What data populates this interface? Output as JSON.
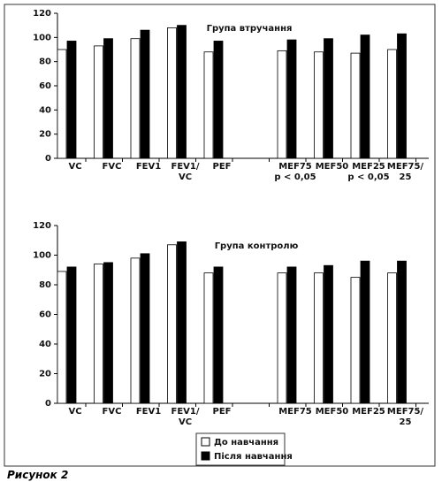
{
  "chart_data": [
    {
      "type": "bar",
      "title": "Група втручання",
      "categories": [
        "VC",
        "FVC",
        "FEV1",
        "FEV1/\nVC",
        "PEF",
        null,
        "MEF75\np < 0,05",
        "MEF50",
        "MEF25\np < 0,05",
        "MEF75/\n25"
      ],
      "series": [
        {
          "color": "#ffffff",
          "values": [
            90,
            93,
            99,
            108,
            88,
            null,
            89,
            88,
            87,
            90
          ]
        },
        {
          "color": "#000000",
          "values": [
            97,
            99,
            106,
            110,
            97,
            null,
            98,
            99,
            102,
            103
          ]
        }
      ],
      "ylim": [
        0,
        120
      ],
      "yticks": [
        0,
        20,
        40,
        60,
        80,
        100,
        120
      ]
    },
    {
      "type": "bar",
      "title": "Група контролю",
      "categories": [
        "VC",
        "FVC",
        "FEV1",
        "FEV1/\nVC",
        "PEF",
        null,
        "MEF75",
        "MEF50",
        "MEF25",
        "MEF75/\n25"
      ],
      "series": [
        {
          "color": "#ffffff",
          "values": [
            89,
            94,
            98,
            107,
            88,
            null,
            88,
            88,
            85,
            88
          ]
        },
        {
          "color": "#000000",
          "values": [
            92,
            95,
            101,
            109,
            92,
            null,
            92,
            93,
            96,
            96
          ]
        }
      ],
      "ylim": [
        0,
        120
      ],
      "yticks": [
        0,
        20,
        40,
        60,
        80,
        100,
        120
      ]
    }
  ],
  "legend": [
    {
      "name": "До навчання",
      "color": "#ffffff"
    },
    {
      "name": "Після навчання",
      "color": "#000000"
    }
  ],
  "caption": "Рисунок 2"
}
